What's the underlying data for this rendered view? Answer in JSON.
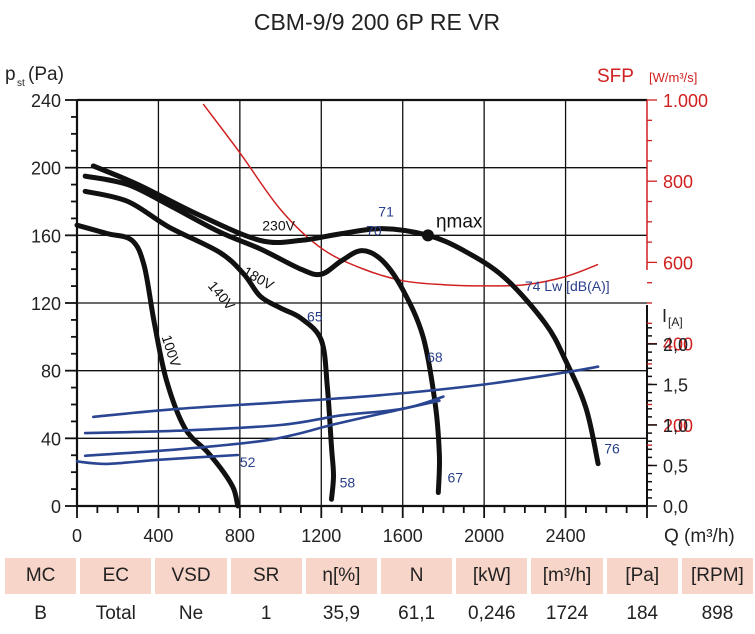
{
  "chart_data": {
    "type": "line",
    "title": "CBM-9/9 200 6P RE VR",
    "xlabel": "Q (m³/h)",
    "ylabel": "pst(Pa)",
    "ylabel_main": "p",
    "ylabel_sub": "st",
    "ylabel_unit": "(Pa)",
    "xlim": [
      0,
      2800
    ],
    "ylim": [
      0,
      240
    ],
    "x_ticks": [
      0,
      400,
      800,
      1200,
      1600,
      2000,
      2400
    ],
    "x_tick_labels": [
      "0",
      "400",
      "800",
      "1200",
      "1600",
      "2000",
      "2400"
    ],
    "y_ticks": [
      0,
      40,
      80,
      120,
      160,
      200,
      240
    ],
    "y_tick_labels": [
      "0",
      "40",
      "80",
      "120",
      "160",
      "200",
      "240"
    ],
    "grid": true,
    "sfp_axis": {
      "label": "SFP",
      "unit": "[W/m³/s]",
      "ylim": [
        0,
        1000
      ],
      "ticks": [
        200,
        400,
        600,
        800,
        1000
      ],
      "tick_labels": [
        "200",
        "400",
        "600",
        "800",
        "1.000"
      ],
      "color": "#d02020"
    },
    "current_axis": {
      "label": "I",
      "unit": "[A]",
      "ylim": [
        0,
        2.5
      ],
      "ticks": [
        0,
        0.5,
        1.0,
        1.5,
        2.0
      ],
      "tick_labels": [
        "0,0",
        "0,5",
        "1,0",
        "1,5",
        "2,0"
      ]
    },
    "pressure_series": [
      {
        "name": "230V",
        "points": [
          [
            80,
            201
          ],
          [
            300,
            190
          ],
          [
            600,
            172
          ],
          [
            900,
            157
          ],
          [
            1100,
            157
          ],
          [
            1300,
            161
          ],
          [
            1500,
            164
          ],
          [
            1724,
            160
          ],
          [
            1900,
            151
          ],
          [
            2100,
            135
          ],
          [
            2300,
            108
          ],
          [
            2400,
            86
          ],
          [
            2500,
            58
          ],
          [
            2560,
            25
          ]
        ]
      },
      {
        "name": "180V",
        "points": [
          [
            40,
            195
          ],
          [
            250,
            190
          ],
          [
            450,
            178
          ],
          [
            700,
            162
          ],
          [
            900,
            152
          ],
          [
            1100,
            140
          ],
          [
            1200,
            137
          ],
          [
            1300,
            145
          ],
          [
            1400,
            151
          ],
          [
            1500,
            145
          ],
          [
            1600,
            128
          ],
          [
            1700,
            100
          ],
          [
            1760,
            60
          ],
          [
            1780,
            30
          ],
          [
            1775,
            8
          ]
        ]
      },
      {
        "name": "140V",
        "points": [
          [
            40,
            186
          ],
          [
            250,
            180
          ],
          [
            450,
            165
          ],
          [
            700,
            150
          ],
          [
            820,
            137
          ],
          [
            900,
            124
          ],
          [
            1000,
            117
          ],
          [
            1100,
            111
          ],
          [
            1200,
            98
          ],
          [
            1230,
            70
          ],
          [
            1250,
            35
          ],
          [
            1260,
            18
          ],
          [
            1250,
            4
          ]
        ]
      },
      {
        "name": "100V",
        "points": [
          [
            0,
            166
          ],
          [
            150,
            161
          ],
          [
            270,
            157
          ],
          [
            330,
            142
          ],
          [
            380,
            108
          ],
          [
            440,
            74
          ],
          [
            530,
            46
          ],
          [
            640,
            32
          ],
          [
            720,
            20
          ],
          [
            770,
            10
          ],
          [
            790,
            0
          ]
        ]
      }
    ],
    "current_series": [
      {
        "name": "230V",
        "points": [
          [
            80,
            1.1
          ],
          [
            500,
            1.2
          ],
          [
            1000,
            1.28
          ],
          [
            1500,
            1.37
          ],
          [
            2000,
            1.5
          ],
          [
            2400,
            1.65
          ],
          [
            2560,
            1.72
          ]
        ]
      },
      {
        "name": "180V",
        "points": [
          [
            40,
            0.9
          ],
          [
            500,
            0.93
          ],
          [
            1000,
            1.0
          ],
          [
            1300,
            1.12
          ],
          [
            1600,
            1.2
          ],
          [
            1800,
            1.35
          ]
        ]
      },
      {
        "name": "140V",
        "points": [
          [
            40,
            0.62
          ],
          [
            500,
            0.7
          ],
          [
            900,
            0.8
          ],
          [
            1100,
            0.9
          ],
          [
            1250,
            1.0
          ],
          [
            1600,
            1.2
          ],
          [
            1780,
            1.3
          ]
        ]
      },
      {
        "name": "100V",
        "points": [
          [
            0,
            0.55
          ],
          [
            150,
            0.52
          ],
          [
            400,
            0.57
          ],
          [
            790,
            0.63
          ]
        ]
      }
    ],
    "sfp_series": {
      "name": "SFP",
      "points": [
        [
          620,
          990
        ],
        [
          800,
          870
        ],
        [
          1000,
          730
        ],
        [
          1200,
          635
        ],
        [
          1400,
          585
        ],
        [
          1600,
          555
        ],
        [
          1800,
          545
        ],
        [
          2000,
          542
        ],
        [
          2200,
          545
        ],
        [
          2400,
          565
        ],
        [
          2560,
          595
        ]
      ]
    },
    "noise_labels": [
      {
        "text": "52",
        "x": 800,
        "y": 23
      },
      {
        "text": "58",
        "x": 1290,
        "y": 11
      },
      {
        "text": "65",
        "x": 1130,
        "y": 109
      },
      {
        "text": "67",
        "x": 1820,
        "y": 14
      },
      {
        "text": "68",
        "x": 1720,
        "y": 85
      },
      {
        "text": "70",
        "x": 1420,
        "y": 160
      },
      {
        "text": "71",
        "x": 1480,
        "y": 171
      },
      {
        "text": "76",
        "x": 2590,
        "y": 31
      },
      {
        "text": "74 Lw [dB(A)]",
        "x": 2200,
        "y": 127
      }
    ],
    "voltage_labels": [
      {
        "text": "230V",
        "x": 910,
        "y": 163,
        "rotate": 0
      },
      {
        "text": "180V",
        "x": 810,
        "y": 137,
        "rotate": 30
      },
      {
        "text": "140V",
        "x": 640,
        "y": 130,
        "rotate": 50
      },
      {
        "text": "100V",
        "x": 415,
        "y": 100,
        "rotate": 72
      }
    ],
    "eta_max": {
      "label": "ηmax",
      "x": 1724,
      "y": 160
    }
  },
  "table": {
    "headers": [
      "MC",
      "EC",
      "VSD",
      "SR",
      "η[%]",
      "N",
      "[kW]",
      "[m³/h]",
      "[Pa]",
      "[RPM]"
    ],
    "values": [
      "B",
      "Total",
      "Ne",
      "1",
      "35,9",
      "61,1",
      "0,246",
      "1724",
      "184",
      "898"
    ]
  }
}
